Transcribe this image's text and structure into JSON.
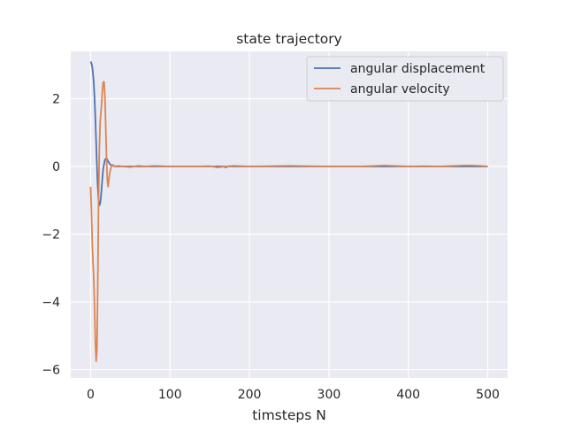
{
  "chart_data": {
    "type": "line",
    "title": "state trajectory",
    "xlabel": "timsteps N",
    "ylabel": "",
    "xlim": [
      -25,
      525
    ],
    "ylim": [
      -6.25,
      3.4
    ],
    "xticks": [
      0,
      100,
      200,
      300,
      400,
      500
    ],
    "yticks": [
      -6,
      -4,
      -2,
      0,
      2
    ],
    "ytick_labels": [
      "−6",
      "−4",
      "−2",
      "0",
      "2"
    ],
    "grid": true,
    "legend_position": "top-right",
    "background": "#eaeaf2",
    "series": [
      {
        "name": "angular displacement",
        "color": "#4c72b0",
        "x": [
          0,
          1,
          2,
          3,
          4,
          5,
          6,
          7,
          8,
          9,
          10,
          11,
          12,
          13,
          14,
          15,
          16,
          18,
          20,
          22,
          25,
          28,
          32,
          40,
          50,
          60,
          80,
          100,
          130,
          160,
          168,
          170,
          172,
          200,
          250,
          300,
          350,
          400,
          450,
          500
        ],
        "y": [
          3.1,
          3.05,
          2.95,
          2.75,
          2.45,
          2.0,
          1.4,
          0.7,
          0.0,
          -0.6,
          -1.0,
          -1.15,
          -1.1,
          -0.9,
          -0.6,
          -0.3,
          -0.05,
          0.2,
          0.25,
          0.15,
          0.05,
          0.02,
          0.0,
          0.0,
          0.0,
          0.0,
          0.0,
          0.0,
          0.0,
          0.0,
          0.0,
          -0.03,
          0.0,
          0.0,
          0.0,
          0.0,
          0.0,
          0.0,
          0.0,
          0.0
        ]
      },
      {
        "name": "angular velocity",
        "color": "#dd8452",
        "x": [
          0,
          1,
          2,
          3,
          4,
          5,
          6,
          7,
          8,
          9,
          10,
          11,
          12,
          13,
          14,
          15,
          16,
          17,
          18,
          19,
          20,
          21,
          22,
          23,
          24,
          26,
          28,
          30,
          35,
          40,
          50,
          60,
          70,
          80,
          100,
          130,
          150,
          160,
          170,
          180,
          200,
          250,
          300,
          340,
          350,
          370,
          400,
          420,
          440,
          460,
          470,
          480,
          490,
          500
        ],
        "y": [
          -0.6,
          -1.3,
          -2.2,
          -2.8,
          -3.3,
          -4.2,
          -5.2,
          -5.75,
          -5.4,
          -3.5,
          -1.0,
          0.5,
          1.3,
          1.6,
          1.9,
          2.3,
          2.5,
          2.5,
          2.1,
          1.2,
          0.3,
          -0.4,
          -0.6,
          -0.4,
          -0.2,
          0.0,
          0.05,
          0.0,
          0.02,
          0.0,
          -0.02,
          0.02,
          0.0,
          0.02,
          0.0,
          0.0,
          0.01,
          -0.03,
          0.0,
          0.02,
          0.0,
          0.02,
          0.0,
          0.0,
          0.01,
          0.03,
          0.0,
          0.01,
          0.0,
          0.02,
          0.03,
          0.03,
          0.02,
          0.0
        ]
      }
    ]
  }
}
